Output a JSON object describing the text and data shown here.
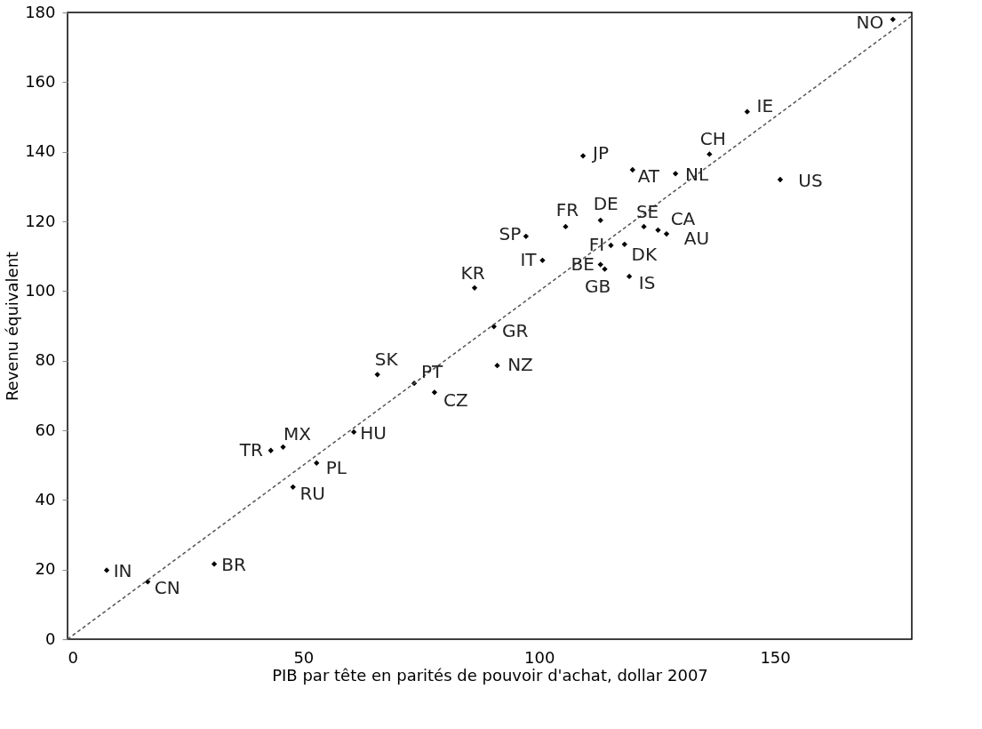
{
  "chart_data": {
    "type": "scatter",
    "xlabel": "PIB par tête en parités de pouvoir d'achat, dollar 2007",
    "ylabel": "Revenu équivalent",
    "xlim": [
      0,
      179
    ],
    "ylim": [
      0,
      180
    ],
    "xticks": [
      0,
      50,
      100,
      150
    ],
    "yticks": [
      0,
      20,
      40,
      60,
      80,
      100,
      120,
      140,
      160,
      180
    ],
    "grid": false,
    "series": [
      {
        "color": "#000000",
        "marker": "diamond",
        "x": [
          8.3,
          17.0,
          31.1,
          43.1,
          45.7,
          47.8,
          52.8,
          60.7,
          65.7,
          73.5,
          77.8,
          86.3,
          90.4,
          91.1,
          100.7,
          97.2,
          105.6,
          109.3,
          113.0,
          113.0,
          113.9,
          119.8,
          115.2,
          118.1,
          119.1,
          122.2,
          125.2,
          127.0,
          128.9,
          136.1,
          144.1,
          151.1,
          175.0
        ],
        "values": [
          19.8,
          16.5,
          21.6,
          54.2,
          55.2,
          43.7,
          50.6,
          59.5,
          76.0,
          73.5,
          70.9,
          100.9,
          89.8,
          78.6,
          108.8,
          115.7,
          118.5,
          138.8,
          120.3,
          107.6,
          106.3,
          134.8,
          113.1,
          113.4,
          104.2,
          118.5,
          117.5,
          116.4,
          133.7,
          139.3,
          151.5,
          132.0,
          178.0
        ]
      },
      {
        "type": "line",
        "color": "#555555",
        "line_style": "dashed",
        "x": [
          0,
          179
        ],
        "values": [
          0,
          179
        ]
      }
    ],
    "annotations": [
      {
        "text": "IN",
        "x": 8.3,
        "y": 19.8
      },
      {
        "text": "CN",
        "x": 17.0,
        "y": 16.5
      },
      {
        "text": "BR",
        "x": 31.1,
        "y": 21.6
      },
      {
        "text": "TR",
        "x": 43.1,
        "y": 54.2
      },
      {
        "text": "MX",
        "x": 45.7,
        "y": 55.2
      },
      {
        "text": "RU",
        "x": 47.8,
        "y": 43.7
      },
      {
        "text": "PL",
        "x": 52.8,
        "y": 50.6
      },
      {
        "text": "HU",
        "x": 60.7,
        "y": 59.5
      },
      {
        "text": "SK",
        "x": 65.7,
        "y": 76.0
      },
      {
        "text": "PT",
        "x": 73.5,
        "y": 73.5
      },
      {
        "text": "CZ",
        "x": 77.8,
        "y": 70.9
      },
      {
        "text": "KR",
        "x": 86.3,
        "y": 100.9
      },
      {
        "text": "GR",
        "x": 90.4,
        "y": 89.8
      },
      {
        "text": "NZ",
        "x": 91.1,
        "y": 78.6
      },
      {
        "text": "IT",
        "x": 100.7,
        "y": 108.8
      },
      {
        "text": "SP",
        "x": 97.2,
        "y": 115.7
      },
      {
        "text": "FR",
        "x": 105.6,
        "y": 118.5
      },
      {
        "text": "JP",
        "x": 109.3,
        "y": 138.8
      },
      {
        "text": "DE",
        "x": 113.0,
        "y": 120.3
      },
      {
        "text": "BE",
        "x": 113.0,
        "y": 107.6
      },
      {
        "text": "GB",
        "x": 113.9,
        "y": 106.3
      },
      {
        "text": "AT",
        "x": 119.8,
        "y": 134.8
      },
      {
        "text": "FI",
        "x": 115.2,
        "y": 113.1
      },
      {
        "text": "DK",
        "x": 118.1,
        "y": 113.4
      },
      {
        "text": "IS",
        "x": 119.1,
        "y": 104.2
      },
      {
        "text": "SE",
        "x": 122.2,
        "y": 118.5
      },
      {
        "text": "CA",
        "x": 125.2,
        "y": 117.5
      },
      {
        "text": "AU",
        "x": 127.0,
        "y": 116.4
      },
      {
        "text": "NL",
        "x": 128.9,
        "y": 133.7
      },
      {
        "text": "CH",
        "x": 136.1,
        "y": 139.3
      },
      {
        "text": "IE",
        "x": 144.1,
        "y": 151.5
      },
      {
        "text": "US",
        "x": 151.1,
        "y": 132.0
      },
      {
        "text": "NO",
        "x": 175.0,
        "y": 178.0
      }
    ]
  }
}
